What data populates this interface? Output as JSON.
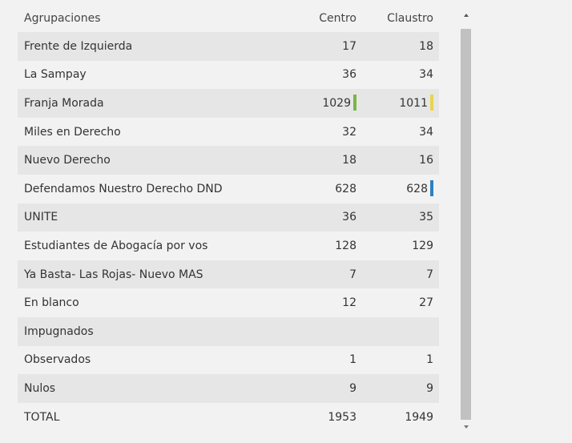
{
  "table": {
    "headers": {
      "name": "Agrupaciones",
      "centro": "Centro",
      "claustro": "Claustro"
    },
    "rows": [
      {
        "name": "Frente de Izquierda",
        "centro": "17",
        "claustro": "18"
      },
      {
        "name": "La Sampay",
        "centro": "36",
        "claustro": "34"
      },
      {
        "name": "Franja Morada",
        "centro": "1029",
        "claustro": "1011"
      },
      {
        "name": "Miles en Derecho",
        "centro": "32",
        "claustro": "34"
      },
      {
        "name": "Nuevo Derecho",
        "centro": "18",
        "claustro": "16"
      },
      {
        "name": "Defendamos Nuestro Derecho DND",
        "centro": "628",
        "claustro": "628"
      },
      {
        "name": "UNITE",
        "centro": "36",
        "claustro": "35"
      },
      {
        "name": "Estudiantes de Abogacía por vos",
        "centro": "128",
        "claustro": "129"
      },
      {
        "name": "Ya Basta- Las Rojas- Nuevo MAS",
        "centro": "7",
        "claustro": "7"
      },
      {
        "name": "En blanco",
        "centro": "12",
        "claustro": "27"
      },
      {
        "name": "Impugnados",
        "centro": "",
        "claustro": ""
      },
      {
        "name": "Observados",
        "centro": "1",
        "claustro": "1"
      },
      {
        "name": "Nulos",
        "centro": "9",
        "claustro": "9"
      },
      {
        "name": "TOTAL",
        "centro": "1953",
        "claustro": "1949"
      }
    ]
  },
  "markers": {
    "franja_centro_color": "#7ab648",
    "franja_claustro_color": "#e8d44d",
    "dnd_claustro_color": "#2f7fc1"
  },
  "colors": {
    "background": "#f2f2f2",
    "row_shade": "#e6e6e6",
    "scroll_thumb": "#c1c1c1"
  }
}
